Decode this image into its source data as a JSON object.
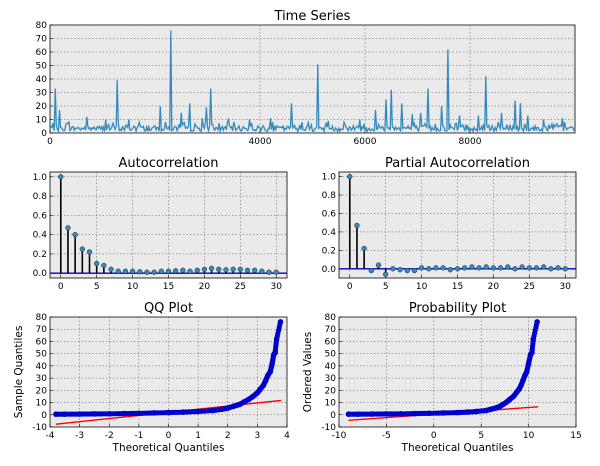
{
  "chart_data": [
    {
      "id": "ts",
      "type": "line",
      "title": "Time Series",
      "xlim": [
        0,
        10000
      ],
      "ylim": [
        0,
        80
      ],
      "xticks": [
        0,
        4000,
        6000,
        8000
      ],
      "xtick_labels": [
        "0",
        "4000",
        "6000",
        "8000"
      ],
      "yticks": [
        0,
        10,
        20,
        30,
        40,
        50,
        60,
        70,
        80
      ],
      "grid": true,
      "color": "#348abd",
      "baseline_level": 3,
      "noise_max": 7,
      "spikes": [
        [
          90,
          33
        ],
        [
          180,
          17
        ],
        [
          350,
          8
        ],
        [
          700,
          12
        ],
        [
          1050,
          10
        ],
        [
          1280,
          39
        ],
        [
          1500,
          10
        ],
        [
          1700,
          8
        ],
        [
          2100,
          20
        ],
        [
          2290,
          76
        ],
        [
          2500,
          15
        ],
        [
          2650,
          22
        ],
        [
          2900,
          11
        ],
        [
          2970,
          19
        ],
        [
          3050,
          33
        ],
        [
          3400,
          10
        ],
        [
          3800,
          10
        ],
        [
          4200,
          11
        ],
        [
          4600,
          22
        ],
        [
          4800,
          8
        ],
        [
          5100,
          51
        ],
        [
          5300,
          9
        ],
        [
          5600,
          8
        ],
        [
          5900,
          10
        ],
        [
          6200,
          17
        ],
        [
          6400,
          25
        ],
        [
          6500,
          32
        ],
        [
          6700,
          22
        ],
        [
          6900,
          14
        ],
        [
          7050,
          15
        ],
        [
          7200,
          33
        ],
        [
          7450,
          20
        ],
        [
          7580,
          62
        ],
        [
          7800,
          13
        ],
        [
          8150,
          13
        ],
        [
          8300,
          42
        ],
        [
          8600,
          15
        ],
        [
          8850,
          24
        ],
        [
          8950,
          22
        ],
        [
          9100,
          13
        ],
        [
          9400,
          10
        ],
        [
          9750,
          11
        ]
      ]
    },
    {
      "id": "acf",
      "type": "stem",
      "title": "Autocorrelation",
      "xlim": [
        -1.5,
        31.5
      ],
      "ylim": [
        -0.05,
        1.05
      ],
      "xticks": [
        0,
        5,
        10,
        15,
        20,
        25,
        30
      ],
      "yticks": [
        0.0,
        0.2,
        0.4,
        0.6,
        0.8,
        1.0
      ],
      "ytick_labels": [
        "0.0",
        "0.2",
        "0.4",
        "0.6",
        "0.8",
        "1.0"
      ],
      "lags": [
        0,
        1,
        2,
        3,
        4,
        5,
        6,
        7,
        8,
        9,
        10,
        11,
        12,
        13,
        14,
        15,
        16,
        17,
        18,
        19,
        20,
        21,
        22,
        23,
        24,
        25,
        26,
        27,
        28,
        29,
        30
      ],
      "values": [
        1.0,
        0.47,
        0.4,
        0.25,
        0.22,
        0.1,
        0.08,
        0.04,
        0.02,
        0.02,
        0.02,
        0.015,
        0.01,
        0.01,
        0.02,
        0.02,
        0.025,
        0.03,
        0.02,
        0.03,
        0.04,
        0.05,
        0.04,
        0.035,
        0.04,
        0.04,
        0.03,
        0.03,
        0.02,
        0.01,
        0.01
      ]
    },
    {
      "id": "pacf",
      "type": "stem",
      "title": "Partial Autocorrelation",
      "xlim": [
        -1.5,
        31.5
      ],
      "ylim": [
        -0.1,
        1.05
      ],
      "xticks": [
        0,
        5,
        10,
        15,
        20,
        25,
        30
      ],
      "yticks": [
        0.0,
        0.2,
        0.4,
        0.6,
        0.8,
        1.0
      ],
      "ytick_labels": [
        "0.0",
        "0.2",
        "0.4",
        "0.6",
        "0.8",
        "1.0"
      ],
      "lags": [
        0,
        1,
        2,
        3,
        4,
        5,
        6,
        7,
        8,
        9,
        10,
        11,
        12,
        13,
        14,
        15,
        16,
        17,
        18,
        19,
        20,
        21,
        22,
        23,
        24,
        25,
        26,
        27,
        28,
        29,
        30
      ],
      "values": [
        1.0,
        0.47,
        0.22,
        -0.02,
        0.04,
        -0.06,
        0.0,
        -0.01,
        -0.02,
        -0.02,
        0.01,
        0.0,
        0.01,
        0.01,
        -0.01,
        0.0,
        0.01,
        0.02,
        0.01,
        0.02,
        0.01,
        0.01,
        0.02,
        0.0,
        0.02,
        0.01,
        0.01,
        0.02,
        0.0,
        0.01,
        0.0
      ]
    },
    {
      "id": "qq",
      "type": "scatter",
      "title": "QQ Plot",
      "xlabel": "Theoretical Quantiles",
      "ylabel": "Sample Quantiles",
      "xlim": [
        -4,
        4
      ],
      "ylim": [
        -10,
        80
      ],
      "xticks": [
        -4,
        -3,
        -2,
        -1,
        0,
        1,
        2,
        3,
        4
      ],
      "yticks": [
        -10,
        0,
        10,
        20,
        30,
        40,
        50,
        60,
        70,
        80
      ],
      "grid": true,
      "line": {
        "x": [
          -3.8,
          3.8
        ],
        "y": [
          -7.7,
          11.7
        ]
      },
      "points": [
        [
          -3.8,
          0.5
        ],
        [
          -3.5,
          0.5
        ],
        [
          -3.0,
          0.6
        ],
        [
          -2.5,
          0.7
        ],
        [
          -2.0,
          0.8
        ],
        [
          -1.5,
          1.0
        ],
        [
          -1.0,
          1.2
        ],
        [
          -0.5,
          1.5
        ],
        [
          0.0,
          1.8
        ],
        [
          0.5,
          2.2
        ],
        [
          1.0,
          2.7
        ],
        [
          1.5,
          3.5
        ],
        [
          1.8,
          4.5
        ],
        [
          2.0,
          5.5
        ],
        [
          2.2,
          7.0
        ],
        [
          2.4,
          8.5
        ],
        [
          2.55,
          10.5
        ],
        [
          2.7,
          12.5
        ],
        [
          2.85,
          15.0
        ],
        [
          3.0,
          18.0
        ],
        [
          3.1,
          21.0
        ],
        [
          3.2,
          24.0
        ],
        [
          3.28,
          28.0
        ],
        [
          3.35,
          32.0
        ],
        [
          3.43,
          35.0
        ],
        [
          3.5,
          42.0
        ],
        [
          3.55,
          49.0
        ],
        [
          3.6,
          51.0
        ],
        [
          3.65,
          62.0
        ],
        [
          3.78,
          76.0
        ]
      ]
    },
    {
      "id": "prob",
      "type": "scatter",
      "title": "Probability Plot",
      "xlabel": "",
      "ylabel": "Ordered Values",
      "xlim": [
        -10,
        15
      ],
      "ylim": [
        -10,
        80
      ],
      "xticks": [
        -10,
        -5,
        0,
        5,
        10,
        15
      ],
      "yticks": [
        -10,
        0,
        10,
        20,
        30,
        40,
        50,
        60,
        70,
        80
      ],
      "grid": true,
      "line": {
        "x": [
          -9,
          11
        ],
        "y": [
          -4.5,
          6.5
        ]
      },
      "points": [
        [
          -9.0,
          0.5
        ],
        [
          -8.0,
          0.5
        ],
        [
          -6.5,
          0.6
        ],
        [
          -5.0,
          0.7
        ],
        [
          -3.5,
          0.8
        ],
        [
          -2.0,
          1.0
        ],
        [
          -0.5,
          1.2
        ],
        [
          1.0,
          1.5
        ],
        [
          2.5,
          1.8
        ],
        [
          3.5,
          2.2
        ],
        [
          4.5,
          2.7
        ],
        [
          5.5,
          3.5
        ],
        [
          6.0,
          4.5
        ],
        [
          6.5,
          5.5
        ],
        [
          7.0,
          7.0
        ],
        [
          7.3,
          8.5
        ],
        [
          7.7,
          10.5
        ],
        [
          8.0,
          12.5
        ],
        [
          8.4,
          15.0
        ],
        [
          8.7,
          18.0
        ],
        [
          9.0,
          21.0
        ],
        [
          9.2,
          24.0
        ],
        [
          9.4,
          28.0
        ],
        [
          9.6,
          32.0
        ],
        [
          9.8,
          35.0
        ],
        [
          10.0,
          42.0
        ],
        [
          10.2,
          49.0
        ],
        [
          10.35,
          51.0
        ],
        [
          10.5,
          62.0
        ],
        [
          10.9,
          76.0
        ]
      ]
    }
  ],
  "colors": {
    "panel": "#eaeaea",
    "series": "#348abd",
    "baseline": "#0000cc",
    "points": "#0000cc",
    "fit": "#ff0000",
    "stem": "#000000"
  },
  "shared_xlabel": "Theoretical Quantiles"
}
